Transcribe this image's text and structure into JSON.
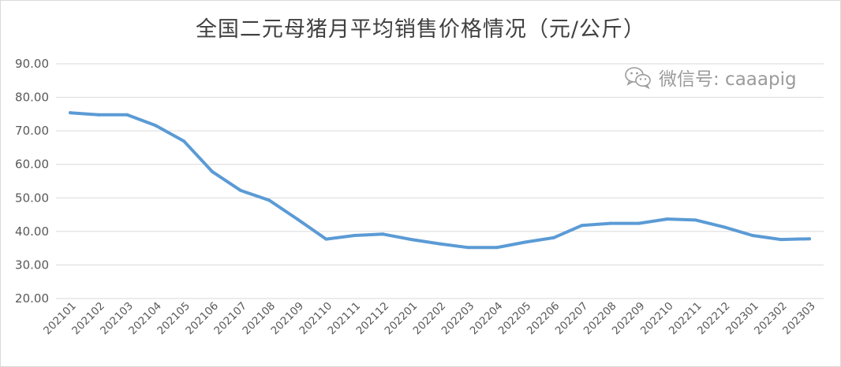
{
  "chart_data": {
    "type": "line",
    "title": "全国二元母猪月平均销售价格情况（元/公斤）",
    "xlabel": "",
    "ylabel": "",
    "ylim": [
      20,
      90
    ],
    "yticks": [
      "20.00",
      "30.00",
      "40.00",
      "50.00",
      "60.00",
      "70.00",
      "80.00",
      "90.00"
    ],
    "grid": true,
    "line_color": "#5b9bd5",
    "categories": [
      "202101",
      "202102",
      "202103",
      "202104",
      "202105",
      "202106",
      "202107",
      "202108",
      "202109",
      "202110",
      "202111",
      "202112",
      "202201",
      "202202",
      "202203",
      "202204",
      "202205",
      "202206",
      "202207",
      "202208",
      "202209",
      "202210",
      "202211",
      "202212",
      "202301",
      "202302",
      "202303"
    ],
    "series": [
      {
        "values": [
          75.4,
          74.8,
          74.8,
          71.6,
          66.9,
          57.8,
          52.2,
          49.3,
          43.6,
          37.7,
          38.8,
          39.2,
          37.6,
          36.3,
          35.2,
          35.2,
          36.8,
          38.1,
          41.8,
          42.4,
          42.4,
          43.7,
          43.4,
          41.3,
          38.8,
          37.6,
          37.8
        ]
      }
    ]
  },
  "watermark": {
    "text": "微信号: caaapig",
    "icon": "wechat-icon"
  }
}
